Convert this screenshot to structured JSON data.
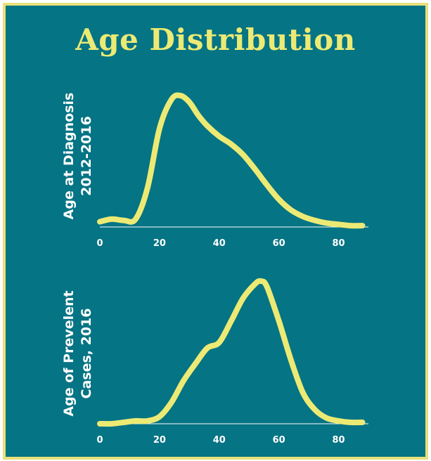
{
  "title": "Age Distribution",
  "colors": {
    "background": "#057484",
    "accent": "#ecea74",
    "border": "#e8e07a",
    "text": "#ffffff"
  },
  "chart_data": [
    {
      "type": "line",
      "ylabel_lines": [
        "Age at Diagnosis",
        "2012-2016"
      ],
      "x_ticks": [
        "0",
        "20",
        "40",
        "60",
        "80"
      ],
      "xlim": [
        0,
        90
      ],
      "ylim": [
        0,
        1
      ],
      "grid": false,
      "x": [
        0,
        4,
        8,
        12,
        16,
        20,
        24,
        27,
        30,
        33,
        36,
        40,
        44,
        48,
        52,
        56,
        60,
        64,
        68,
        72,
        76,
        80,
        84,
        88
      ],
      "y": [
        0.04,
        0.06,
        0.05,
        0.06,
        0.3,
        0.75,
        0.97,
        1.0,
        0.95,
        0.85,
        0.77,
        0.69,
        0.63,
        0.55,
        0.44,
        0.32,
        0.21,
        0.13,
        0.08,
        0.05,
        0.03,
        0.02,
        0.01,
        0.01
      ]
    },
    {
      "type": "line",
      "ylabel_lines": [
        "Age of Prevelent",
        "Cases, 2016"
      ],
      "x_ticks": [
        "0",
        "20",
        "40",
        "60",
        "80"
      ],
      "xlim": [
        0,
        90
      ],
      "ylim": [
        0,
        1
      ],
      "grid": false,
      "x": [
        0,
        4,
        8,
        12,
        16,
        20,
        24,
        28,
        32,
        36,
        40,
        44,
        48,
        52,
        54,
        56,
        60,
        64,
        68,
        72,
        76,
        80,
        84,
        88
      ],
      "y": [
        0.0,
        0.0,
        0.01,
        0.02,
        0.02,
        0.05,
        0.15,
        0.3,
        0.42,
        0.53,
        0.57,
        0.72,
        0.88,
        0.98,
        1.0,
        0.96,
        0.72,
        0.45,
        0.22,
        0.1,
        0.04,
        0.02,
        0.01,
        0.01
      ]
    }
  ]
}
